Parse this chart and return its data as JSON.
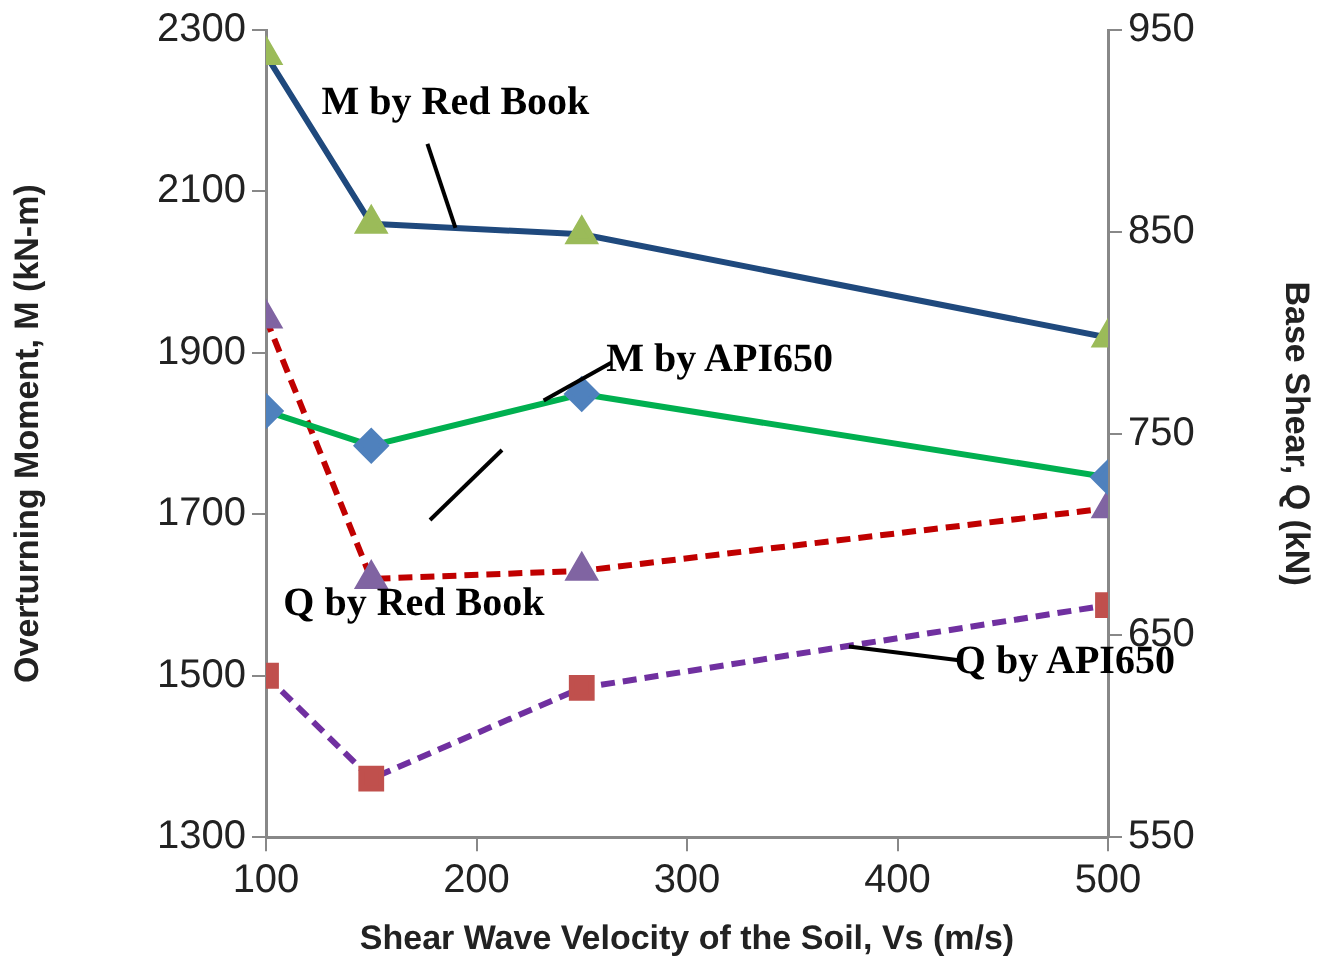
{
  "chart_data": {
    "type": "line",
    "xlabel": "Shear Wave Velocity of the Soil, Vs (m/s)",
    "ylabel": "Overturning Moment, M (kN-m)",
    "y2label": "Base Shear, Q (kN)",
    "x": [
      100,
      150,
      250,
      500
    ],
    "xlim": [
      100,
      500
    ],
    "xticks": [
      100,
      200,
      300,
      400,
      500
    ],
    "ylim": [
      1300,
      2300
    ],
    "yticks": [
      1300,
      1500,
      1700,
      1900,
      2100,
      2300
    ],
    "y2lim": [
      550,
      950
    ],
    "y2ticks": [
      550,
      650,
      750,
      850,
      950
    ],
    "grid": false,
    "legend": false,
    "series": [
      {
        "name": "M by Red Book",
        "color": "#1f497d",
        "colors": [
          "#9bbb59",
          "#9bbb59",
          "#9bbb59",
          "#9bbb59"
        ],
        "marker": "triangle",
        "line_style": "solid",
        "values": [
          2269,
          2060,
          2047,
          1919
        ]
      },
      {
        "name": "M by API650",
        "color": "#00b050",
        "colors": [
          "#4f81bd",
          "#4f81bd",
          "#4f81bd",
          "#4f81bd"
        ],
        "marker": "diamond",
        "line_style": "solid",
        "values": [
          1828,
          1785,
          1849,
          1746
        ]
      },
      {
        "name": "Q by Red Book",
        "color": "#c00000",
        "colors": [
          "#8064a2",
          "#8064a2",
          "#8064a2",
          "#8064a2"
        ],
        "marker": "triangle",
        "line_style": "dashed",
        "axis": "y2",
        "values": [
          807,
          678,
          682,
          713
        ]
      },
      {
        "name": "Q by API650",
        "color": "#7030a0",
        "colors": [
          "#c0504d",
          "#c0504d",
          "#c0504d",
          "#c0504d"
        ],
        "marker": "square",
        "line_style": "dashed",
        "axis": "y2",
        "values": [
          630,
          579,
          624,
          665
        ]
      }
    ]
  }
}
